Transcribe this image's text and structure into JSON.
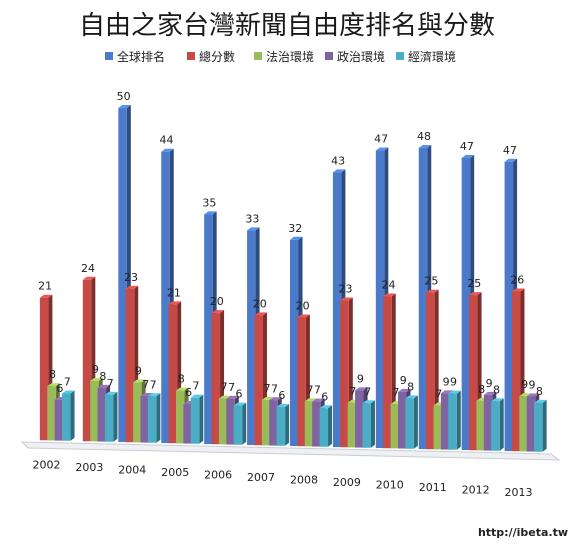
{
  "chart_data": {
    "type": "bar",
    "title": "自由之家台灣新聞自由度排名與分數",
    "categories": [
      "2002",
      "2003",
      "2004",
      "2005",
      "2006",
      "2007",
      "2008",
      "2009",
      "2010",
      "2011",
      "2012",
      "2013"
    ],
    "series": [
      {
        "name": "全球排名",
        "color": "#4a7ac9",
        "values": [
          null,
          null,
          50,
          44,
          35,
          33,
          32,
          43,
          47,
          48,
          47,
          47
        ]
      },
      {
        "name": "總分數",
        "color": "#c84a46",
        "values": [
          21,
          24,
          23,
          21,
          20,
          20,
          20,
          23,
          24,
          25,
          25,
          26
        ]
      },
      {
        "name": "法治環境",
        "color": "#9bbb59",
        "values": [
          8,
          9,
          9,
          8,
          7,
          7,
          7,
          7,
          7,
          7,
          8,
          9
        ]
      },
      {
        "name": "政治環境",
        "color": "#8064a2",
        "values": [
          6,
          8,
          7,
          6,
          7,
          7,
          7,
          9,
          9,
          9,
          9,
          9
        ]
      },
      {
        "name": "經濟環境",
        "color": "#4bacc6",
        "values": [
          7,
          7,
          7,
          7,
          6,
          6,
          6,
          7,
          8,
          9,
          8,
          8
        ]
      }
    ],
    "data_labels": [
      [
        null,
        null,
        "50",
        "44",
        "35",
        "33",
        "32",
        "43",
        "47",
        "48",
        "47",
        "47"
      ],
      [
        "21",
        "24",
        "23",
        "21",
        "20",
        "20",
        "20",
        "23",
        "24",
        "25",
        "25",
        "26"
      ],
      [
        "8",
        "9",
        "9",
        "8",
        "7",
        "7",
        "7",
        "7",
        "7",
        "7",
        "8",
        "9"
      ],
      [
        "6",
        "8",
        "7",
        "6",
        "7",
        "7",
        "7",
        "9",
        "9",
        "9",
        "9",
        "9"
      ],
      [
        "7",
        "7",
        "7",
        "7",
        "6",
        "6",
        "6",
        "7",
        "8",
        "9",
        "8",
        "8"
      ]
    ],
    "legend_position": "top",
    "grid": false
  },
  "watermark": "http://ibeta.tw"
}
